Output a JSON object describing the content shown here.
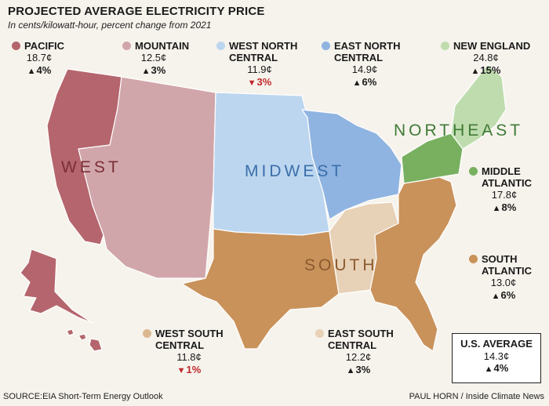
{
  "header": {
    "title": "PROJECTED AVERAGE ELECTRICITY PRICE",
    "subtitle": "In cents/kilowatt-hour, percent change from 2021"
  },
  "colors": {
    "west": "#b5656d",
    "west_light": "#d1a6aa",
    "midwest_light": "#bcd6ef",
    "midwest": "#8fb4e1",
    "northeast_light": "#bfdcae",
    "northeast": "#78b05f",
    "south": "#c9925b",
    "south_light": "#dcb891",
    "south_pale": "#e7d1b7",
    "down": "#c0282d"
  },
  "map_labels": {
    "west": "WEST",
    "midwest": "MIDWEST",
    "northeast": "NORTHEAST",
    "south": "SOUTH"
  },
  "regions": {
    "pacific": {
      "name": "PACIFIC",
      "price": "18.7¢",
      "change": "4%",
      "direction": "up"
    },
    "mountain": {
      "name": "MOUNTAIN",
      "price": "12.5¢",
      "change": "3%",
      "direction": "up"
    },
    "west_north_central": {
      "name1": "WEST NORTH",
      "name2": "CENTRAL",
      "price": "11.9¢",
      "change": "3%",
      "direction": "down"
    },
    "east_north_central": {
      "name1": "EAST NORTH",
      "name2": "CENTRAL",
      "price": "14.9¢",
      "change": "6%",
      "direction": "up"
    },
    "new_england": {
      "name": "NEW ENGLAND",
      "price": "24.8¢",
      "change": "15%",
      "direction": "up"
    },
    "middle_atlantic": {
      "name1": "MIDDLE",
      "name2": "ATLANTIC",
      "price": "17.8¢",
      "change": "8%",
      "direction": "up"
    },
    "south_atlantic": {
      "name1": "SOUTH",
      "name2": "ATLANTIC",
      "price": "13.0¢",
      "change": "6%",
      "direction": "up"
    },
    "west_south_central": {
      "name1": "WEST SOUTH",
      "name2": "CENTRAL",
      "price": "11.8¢",
      "change": "1%",
      "direction": "down"
    },
    "east_south_central": {
      "name1": "EAST SOUTH",
      "name2": "CENTRAL",
      "price": "12.2¢",
      "change": "3%",
      "direction": "up"
    }
  },
  "us_average": {
    "label": "U.S. AVERAGE",
    "price": "14.3¢",
    "change": "4%",
    "direction": "up"
  },
  "footer": {
    "source": "SOURCE:EIA Short-Term Energy Outlook",
    "credit": "PAUL HORN / Inside Climate News"
  }
}
